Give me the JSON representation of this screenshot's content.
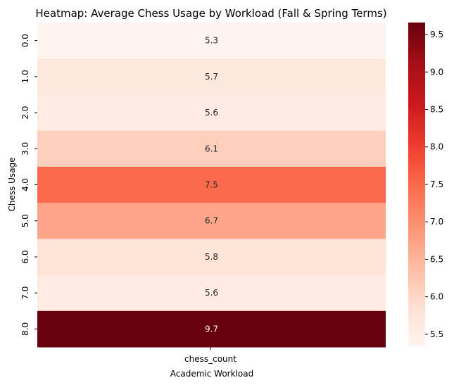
{
  "chart_data": {
    "type": "heatmap",
    "title": "Heatmap: Average Chess Usage by Workload (Fall & Spring Terms)",
    "xlabel": "Academic Workload",
    "ylabel": "Chess Usage",
    "x_categories": [
      "chess_count"
    ],
    "y_categories": [
      "0.0",
      "1.0",
      "2.0",
      "3.0",
      "4.0",
      "5.0",
      "6.0",
      "7.0",
      "8.0"
    ],
    "values": [
      [
        5.3
      ],
      [
        5.7
      ],
      [
        5.6
      ],
      [
        6.1
      ],
      [
        7.5
      ],
      [
        6.7
      ],
      [
        5.8
      ],
      [
        5.6
      ],
      [
        9.7
      ]
    ],
    "value_labels": [
      "5.3",
      "5.7",
      "5.6",
      "6.1",
      "7.5",
      "6.7",
      "5.8",
      "5.6",
      "9.7"
    ],
    "colormap": "Reds",
    "colorbar": {
      "range": [
        5.33,
        9.66
      ],
      "ticks": [
        "5.5",
        "6.0",
        "6.5",
        "7.0",
        "7.5",
        "8.0",
        "8.5",
        "9.0",
        "9.5"
      ]
    }
  }
}
